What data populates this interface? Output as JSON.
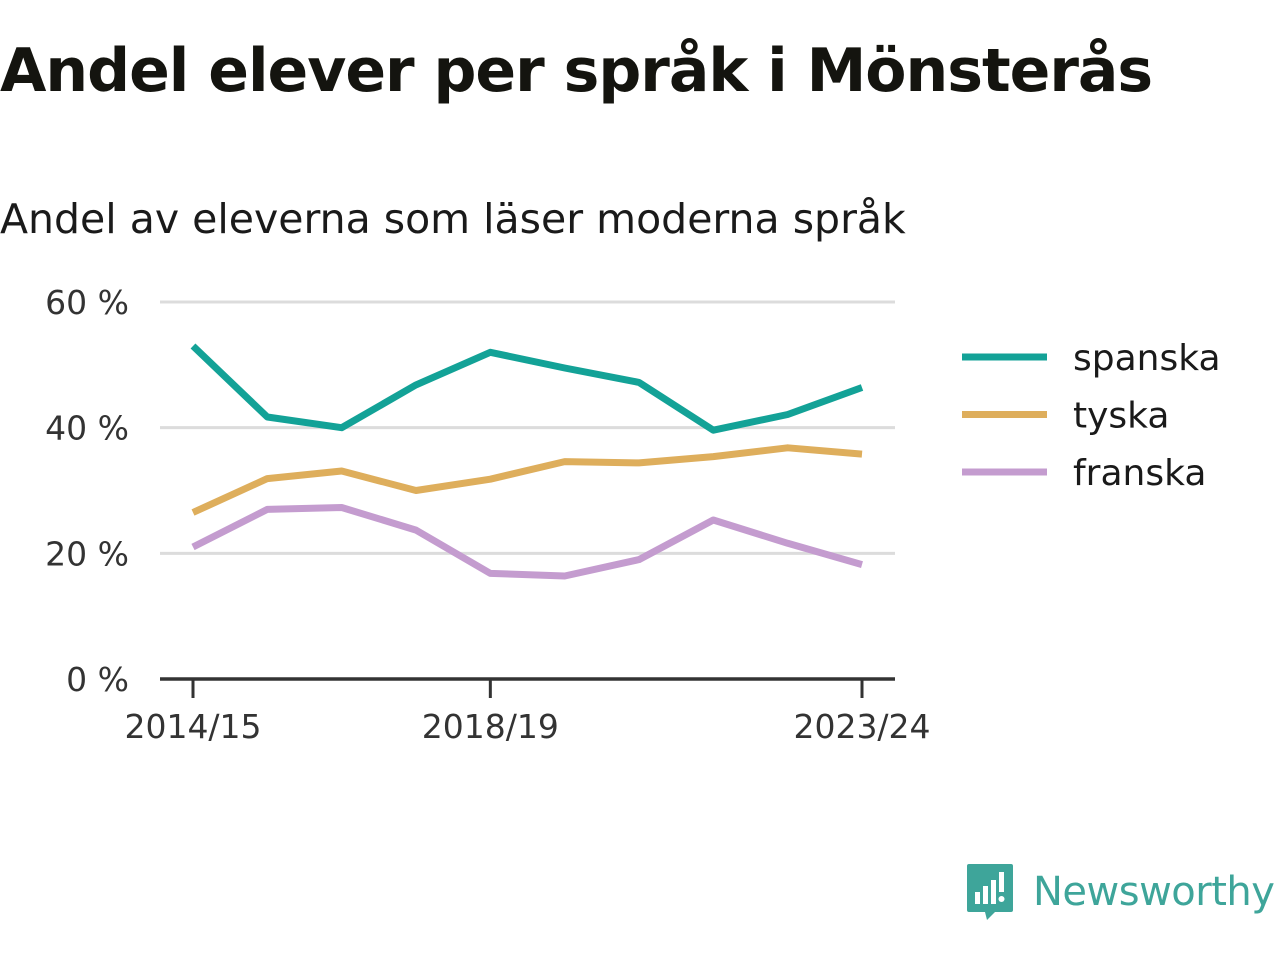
{
  "title": "Andel elever per språk i Mönsterås",
  "subtitle": "Andel av eleverna som läser moderna språk",
  "brand": {
    "name": "Newsworthy",
    "logo_icon": "newsworthy-logo-icon",
    "color": "#3ea59a"
  },
  "chart_data": {
    "type": "line",
    "x": [
      "2014/15",
      "2015/16",
      "2016/17",
      "2017/18",
      "2018/19",
      "2019/20",
      "2020/21",
      "2021/22",
      "2022/23",
      "2023/24"
    ],
    "x_tick_labels": [
      "2014/15",
      "2018/19",
      "2023/24"
    ],
    "y_ticks": [
      0,
      20,
      40,
      60
    ],
    "y_tick_labels": [
      "0 %",
      "20 %",
      "40 %",
      "60 %"
    ],
    "ylim": [
      0,
      60
    ],
    "grid": true,
    "legend_position": "right",
    "series": [
      {
        "name": "spanska",
        "color": "#13a297",
        "values": [
          53,
          41.7,
          40,
          46.8,
          52,
          49.5,
          47.2,
          39.6,
          42.1,
          46.4
        ]
      },
      {
        "name": "tyska",
        "color": "#deae5c",
        "values": [
          26.5,
          31.9,
          33.1,
          30,
          31.8,
          34.6,
          34.4,
          35.4,
          36.8,
          35.8
        ]
      },
      {
        "name": "franska",
        "color": "#c49ccf",
        "values": [
          21,
          27,
          27.3,
          23.7,
          16.8,
          16.4,
          19,
          25.3,
          21.6,
          18.2
        ]
      }
    ]
  }
}
